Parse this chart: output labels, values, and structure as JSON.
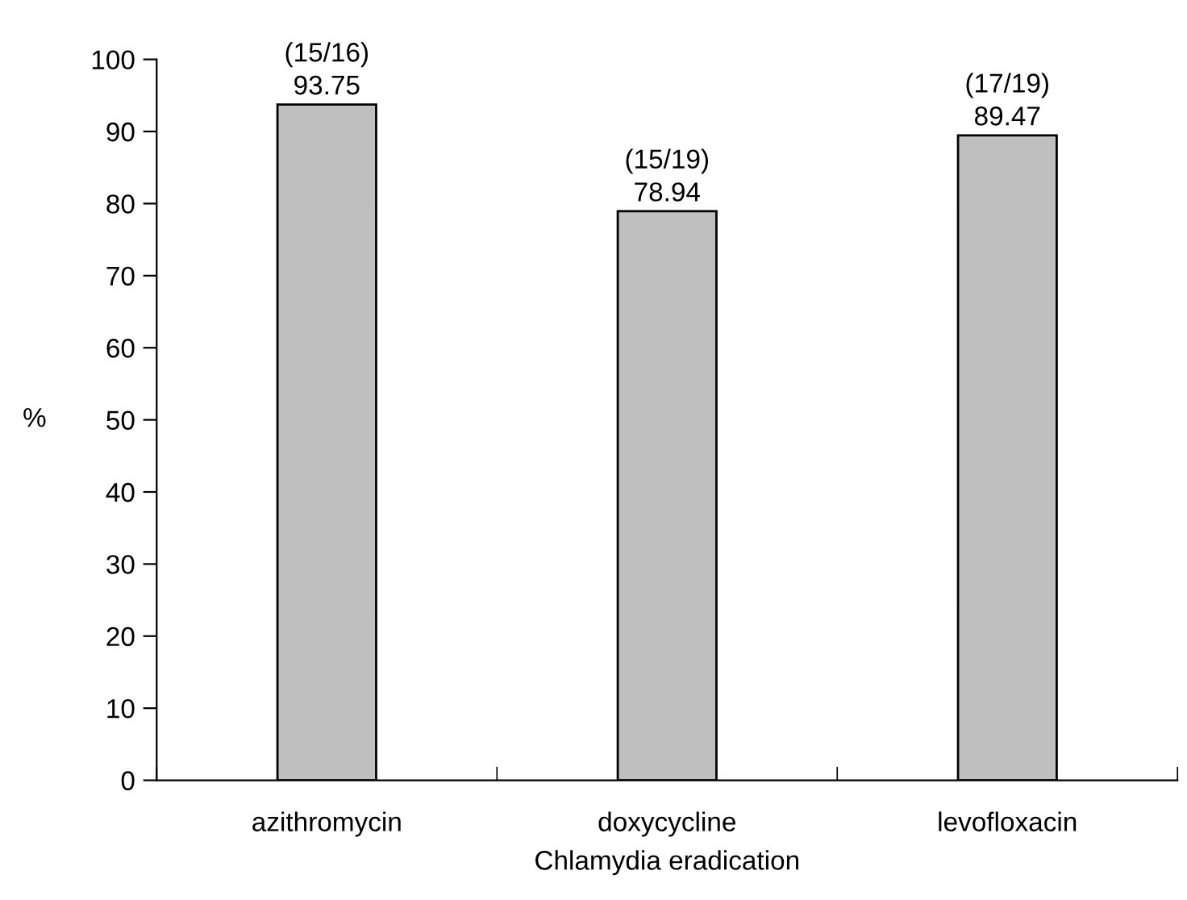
{
  "chart_data": {
    "type": "bar",
    "categories": [
      "azithromycin",
      "doxycycline",
      "levofloxacin"
    ],
    "values": [
      93.75,
      78.94,
      89.47
    ],
    "value_labels": [
      "(15/16)\n93.75",
      "(15/19)\n78.94",
      "(17/19)\n89.47"
    ],
    "color": "#bfbfbf",
    "ylabel": "%",
    "xlabel": "Chlamydia eradication",
    "ylim": [
      0,
      100
    ],
    "yticks": [
      0,
      10,
      20,
      30,
      40,
      50,
      60,
      70,
      80,
      90,
      100
    ],
    "grid": false,
    "legend": false
  }
}
